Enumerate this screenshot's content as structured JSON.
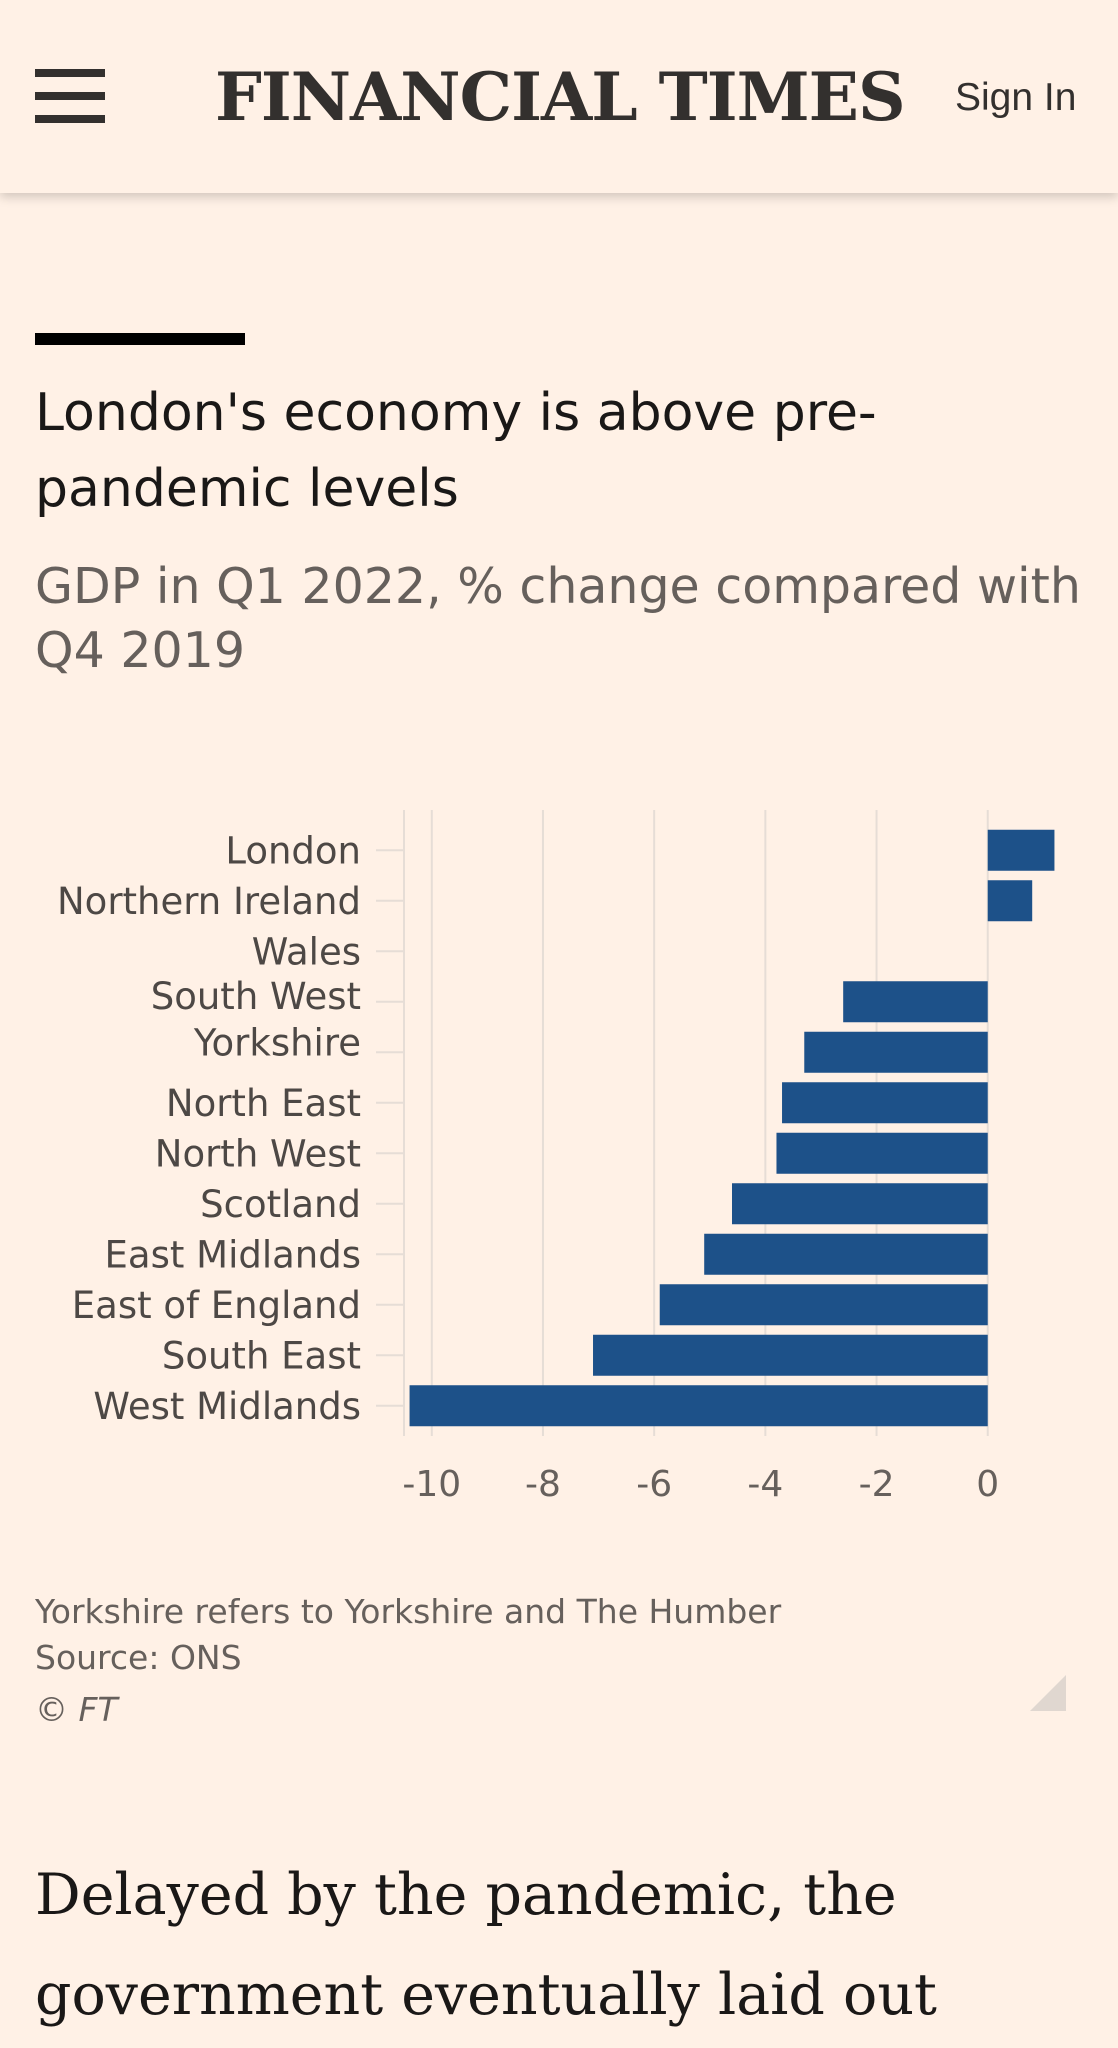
{
  "header": {
    "masthead": "FINANCIAL TIMES",
    "sign_in": "Sign In",
    "menu_icon": "hamburger-menu-icon"
  },
  "chart_data": {
    "type": "bar",
    "orientation": "horizontal",
    "title": "London's economy is above pre-pandemic levels",
    "subtitle": "GDP in Q1 2022, % change compared with Q4 2019",
    "categories": [
      "London",
      "Northern Ireland",
      "Wales",
      "South West",
      "Yorkshire",
      "North East",
      "North West",
      "Scotland",
      "East Midlands",
      "East of England",
      "South East",
      "West Midlands"
    ],
    "values": [
      1.2,
      0.8,
      0.0,
      -2.6,
      -3.3,
      -3.7,
      -3.8,
      -4.6,
      -5.1,
      -5.9,
      -7.1,
      -10.4
    ],
    "xlim": [
      -10.5,
      1.3
    ],
    "xticks": [
      -10,
      -8,
      -6,
      -4,
      -2,
      0
    ],
    "tick_labels": [
      "-10",
      "-8",
      "-6",
      "-4",
      "-2",
      "0"
    ],
    "grid": "vertical",
    "bar_color": "#1d5189",
    "grid_color": "#e6ddd6",
    "notes": [
      "Yorkshire refers to Yorkshire and The Humber",
      "Source: ONS",
      "© FT"
    ]
  },
  "article": {
    "lead": "Delayed by the pandemic, the government eventually laid out"
  },
  "colors": {
    "background": "#fff1e6",
    "text": "#33302e",
    "muted": "#66605c"
  }
}
